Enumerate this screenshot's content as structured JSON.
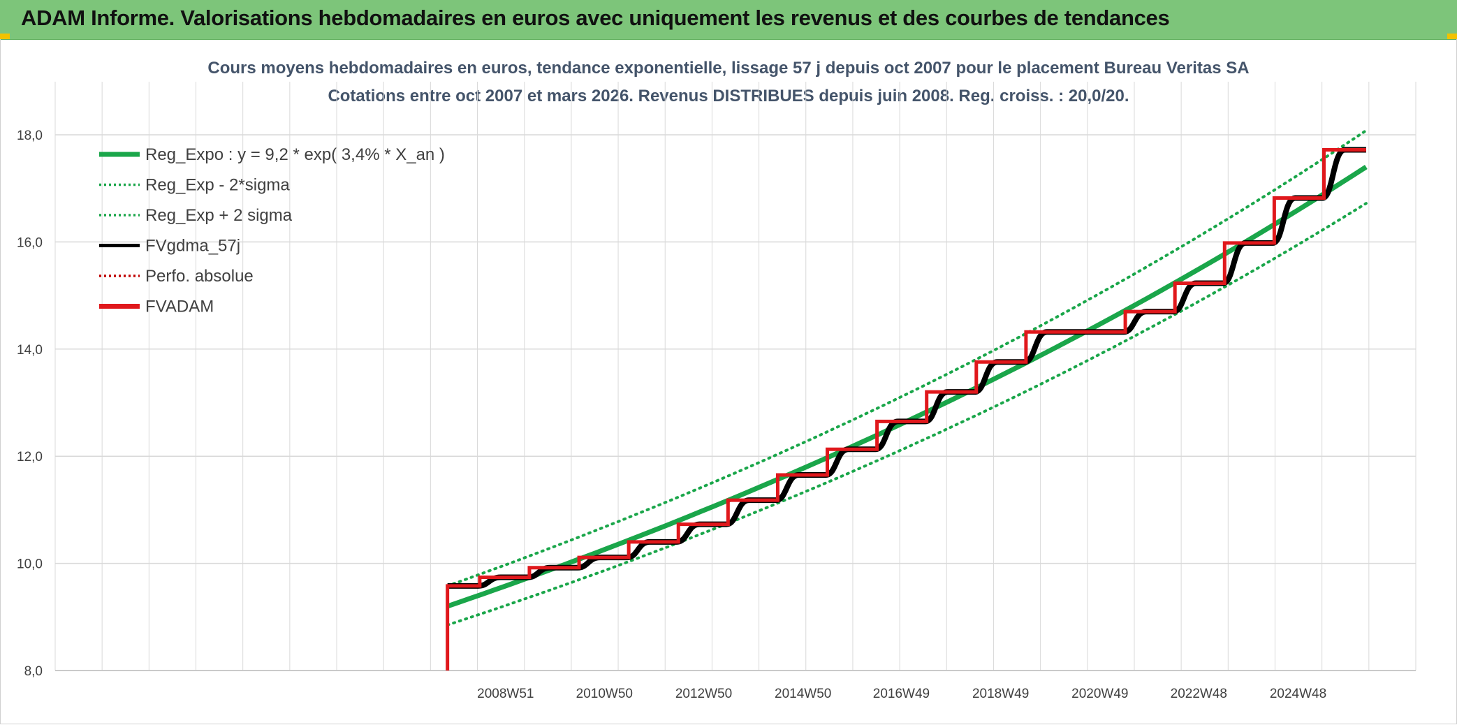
{
  "header": {
    "title": "ADAM Informe. Valorisations hebdomadaires en euros avec uniquement les revenus et des courbes de tendances"
  },
  "colors": {
    "header_bg": "#7dc57a",
    "trend_green": "#1aa64a",
    "fv_black": "#000000",
    "adam_red": "#e0181c",
    "perf_red": "#c00000",
    "grid": "#d9d9d9",
    "title_text": "#44546a"
  },
  "chart_data": {
    "type": "line",
    "title_line1": "Cours moyens hebdomadaires en euros, tendance exponentielle, lissage 57 j depuis oct 2007 pour le placement Bureau Veritas SA",
    "title_line2": "Cotations entre oct 2007 et mars 2026. Revenus DISTRIBUES depuis juin 2008. Reg. croiss. : 20,0/20.",
    "y_ticks": [
      "8,0",
      "10,0",
      "12,0",
      "14,0",
      "16,0",
      "18,0"
    ],
    "ylim": [
      8,
      19
    ],
    "x_tick_labels": [
      "2008W51",
      "2010W50",
      "2012W50",
      "2014W50",
      "2016W49",
      "2018W49",
      "2020W49",
      "2022W48",
      "2024W48"
    ],
    "x_tick_years": [
      2008.97,
      2010.96,
      2012.96,
      2014.96,
      2016.94,
      2018.94,
      2020.94,
      2022.93,
      2024.93
    ],
    "xlim": [
      1999.9,
      2027.3
    ],
    "grid": true,
    "legend_position": "top-left",
    "legend": [
      {
        "label": "Reg_Expo : y = 9,2 * exp( 3,4% *  X_an )",
        "color": "#1aa64a",
        "style": "solid-thick"
      },
      {
        "label": "Reg_Exp - 2*sigma",
        "color": "#1aa64a",
        "style": "dotted"
      },
      {
        "label": "Reg_Exp + 2 sigma",
        "color": "#1aa64a",
        "style": "dotted"
      },
      {
        "label": "FVgdma_57j",
        "color": "#000000",
        "style": "solid"
      },
      {
        "label": "Perfo. absolue",
        "color": "#c00000",
        "style": "dotted"
      },
      {
        "label": "FVADAM",
        "color": "#e0181c",
        "style": "solid-thick"
      }
    ],
    "series": [
      {
        "name": "Reg_Expo : y = 9,2 * exp( 3,4% *  X_an )",
        "x": [
          2007.8,
          2026.3
        ],
        "y": [
          9.2,
          17.4
        ]
      },
      {
        "name": "Reg_Exp - 2*sigma",
        "x": [
          2007.8,
          2026.3
        ],
        "y": [
          8.85,
          16.72
        ]
      },
      {
        "name": "Reg_Exp + 2 sigma",
        "x": [
          2007.8,
          2026.3
        ],
        "y": [
          9.58,
          18.08
        ]
      },
      {
        "name": "FVADAM",
        "start": [
          2007.8,
          8.0
        ],
        "steps": [
          [
            2007.8,
            9.58
          ],
          [
            2008.45,
            9.74
          ],
          [
            2009.45,
            9.92
          ],
          [
            2010.45,
            10.11
          ],
          [
            2011.45,
            10.4
          ],
          [
            2012.45,
            10.73
          ],
          [
            2013.45,
            11.18
          ],
          [
            2014.45,
            11.65
          ],
          [
            2015.45,
            12.13
          ],
          [
            2016.45,
            12.65
          ],
          [
            2017.45,
            13.2
          ],
          [
            2018.45,
            13.76
          ],
          [
            2019.45,
            14.32
          ],
          [
            2021.45,
            14.7
          ],
          [
            2022.45,
            15.23
          ],
          [
            2023.45,
            15.98
          ],
          [
            2024.45,
            16.82
          ],
          [
            2025.45,
            17.72
          ]
        ],
        "end_x": 2026.3
      }
    ]
  }
}
